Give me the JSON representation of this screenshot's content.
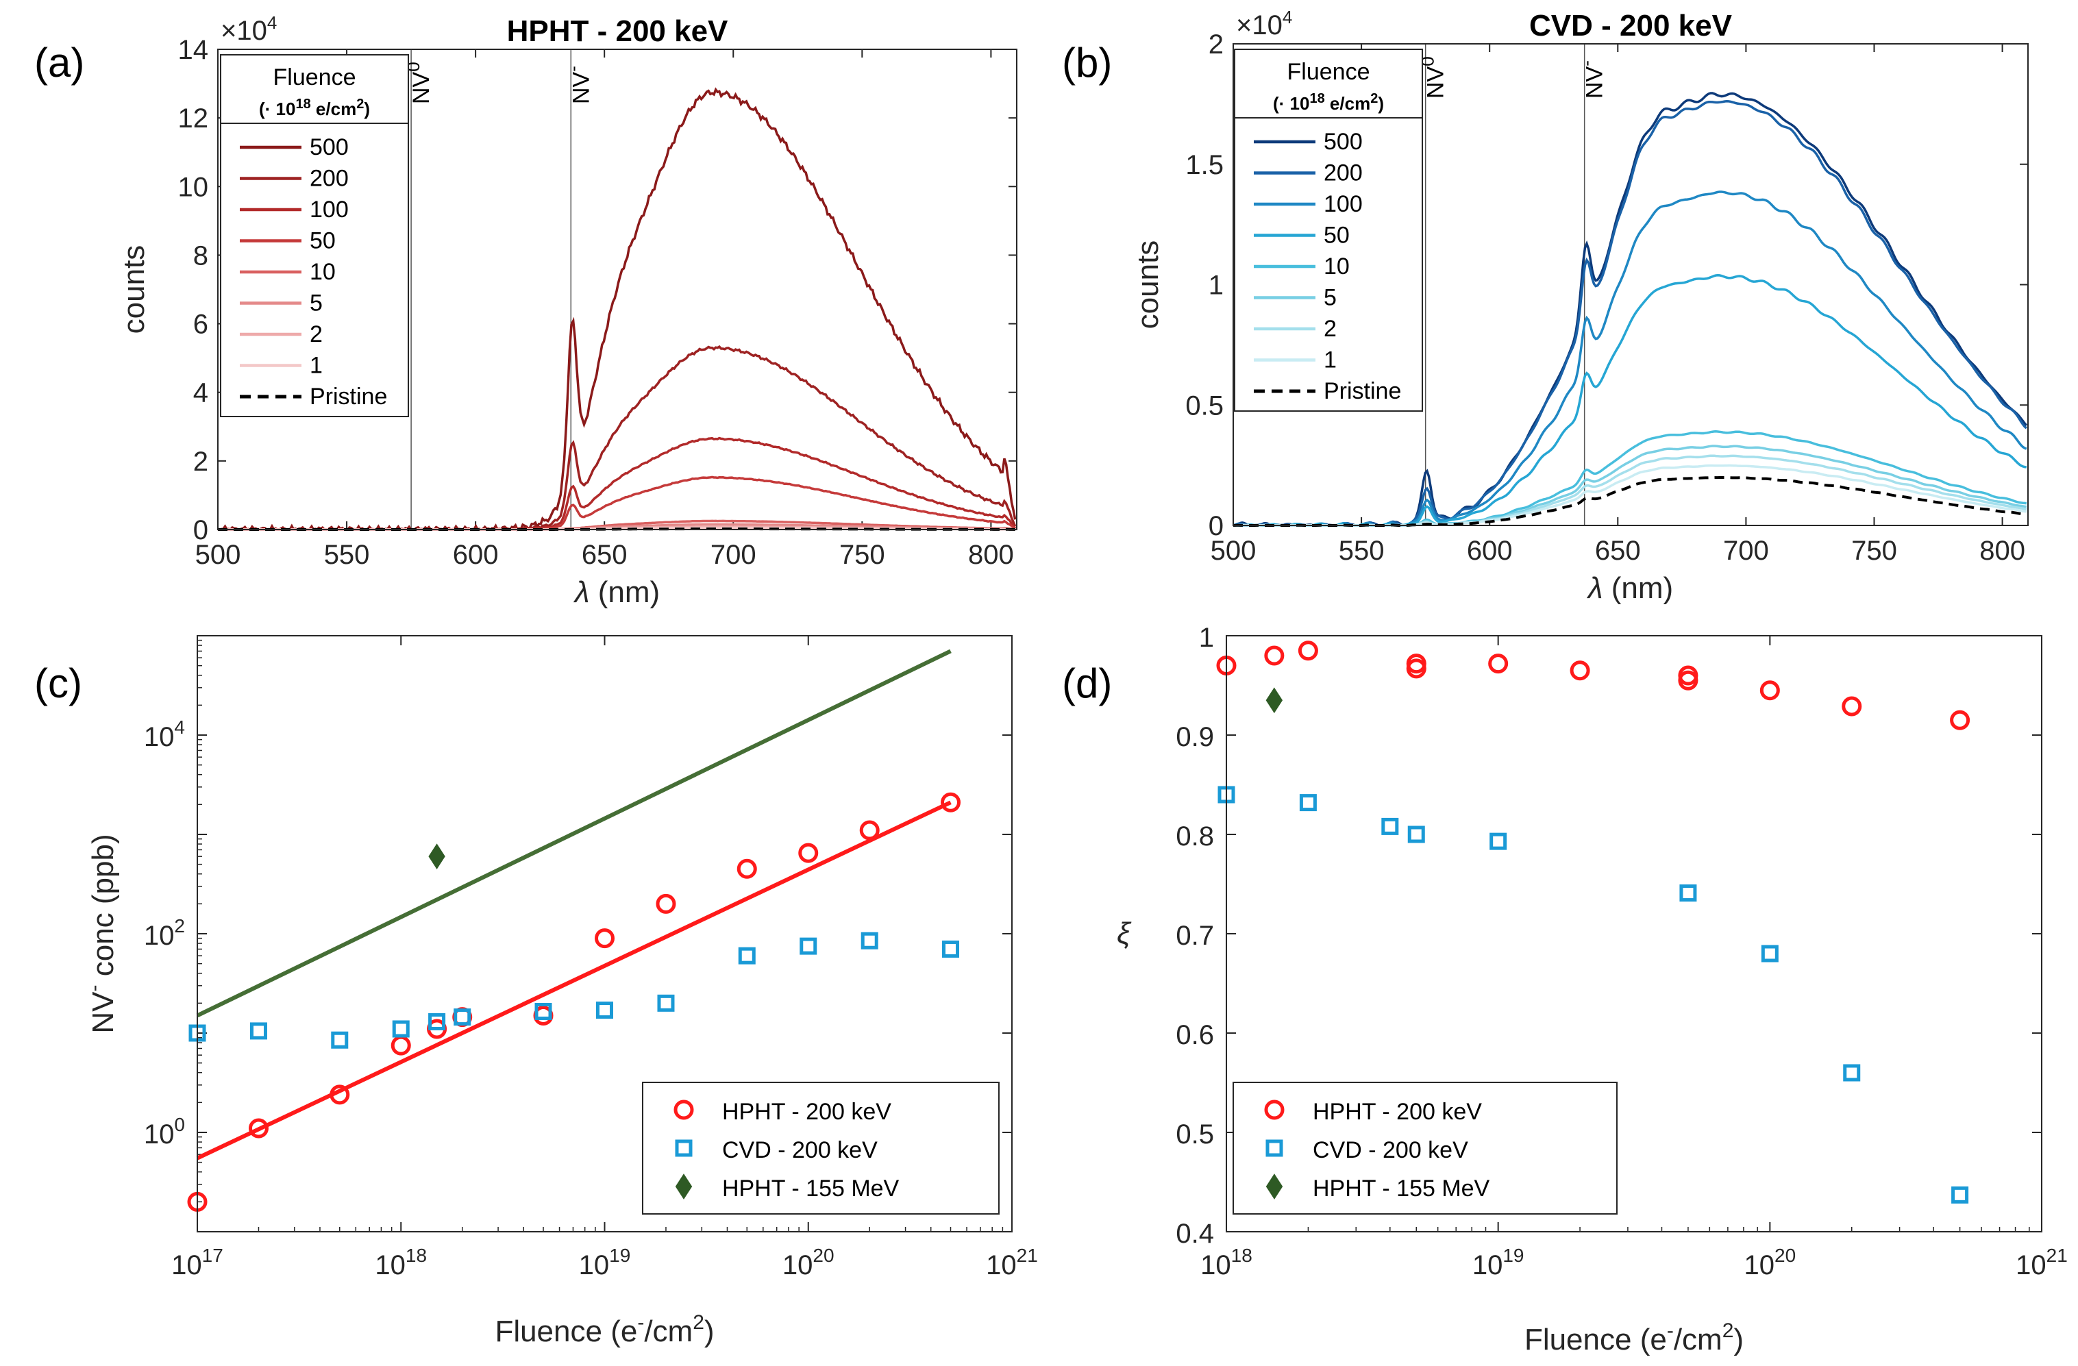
{
  "chart_data": [
    {
      "panel_label": "(a)",
      "type": "line",
      "title": "HPHT - 200 keV",
      "xlabel_symbol": "λ",
      "xlabel_unit": " (nm)",
      "ylabel": "counts",
      "y_multiplier": "×10",
      "y_multiplier_exp": "4",
      "xlim": [
        500,
        810
      ],
      "ylim": [
        0,
        14
      ],
      "xticks": [
        500,
        550,
        600,
        650,
        700,
        750,
        800
      ],
      "yticks": [
        0,
        2,
        4,
        6,
        8,
        10,
        12,
        14
      ],
      "nv_lines": [
        {
          "x": 575,
          "label": "NV",
          "sup": "0"
        },
        {
          "x": 637,
          "label": "NV",
          "sup": "-"
        }
      ],
      "legend_title": "Fluence",
      "legend_subtitle_pre": "(· 10",
      "legend_subtitle_exp": "18",
      "legend_subtitle_mid": " e/cm",
      "legend_subtitle_exp2": "2",
      "legend_subtitle_post": ")",
      "series": [
        {
          "name": "500",
          "color": "#8b1a1a",
          "scale": 12.75,
          "tail": 2.2
        },
        {
          "name": "200",
          "color": "#9e2222",
          "scale": 5.3,
          "tail": 0.9
        },
        {
          "name": "100",
          "color": "#b22a2a",
          "scale": 2.65,
          "tail": 0.45
        },
        {
          "name": "50",
          "color": "#c53a3a",
          "scale": 1.52,
          "tail": 0.26
        },
        {
          "name": "10",
          "color": "#d96060",
          "scale": 0.25,
          "tail": 0.05
        },
        {
          "name": "5",
          "color": "#e48a8a",
          "scale": 0.15,
          "tail": 0.03
        },
        {
          "name": "2",
          "color": "#eeaaaa",
          "scale": 0.08,
          "tail": 0.02
        },
        {
          "name": "1",
          "color": "#f4c8c8",
          "scale": 0.05,
          "tail": 0.01
        },
        {
          "name": "Pristine",
          "color": "#000000",
          "dashed": true,
          "scale": 0.02,
          "tail": 0.005
        }
      ]
    },
    {
      "panel_label": "(b)",
      "type": "line",
      "title": "CVD - 200 keV",
      "xlabel_symbol": "λ",
      "xlabel_unit": " (nm)",
      "ylabel": "counts",
      "y_multiplier": "×10",
      "y_multiplier_exp": "4",
      "xlim": [
        500,
        810
      ],
      "ylim": [
        0,
        2
      ],
      "xticks": [
        500,
        550,
        600,
        650,
        700,
        750,
        800
      ],
      "yticks": [
        0,
        0.5,
        1,
        1.5,
        2
      ],
      "ytick_labels": [
        "0",
        "0.5",
        "1",
        "1.5",
        "2"
      ],
      "nv_lines": [
        {
          "x": 575,
          "label": "NV",
          "sup": "0"
        },
        {
          "x": 637,
          "label": "NV",
          "sup": "-"
        }
      ],
      "legend_title": "Fluence",
      "legend_subtitle_pre": "(· 10",
      "legend_subtitle_exp": "18",
      "legend_subtitle_mid": " e/cm",
      "legend_subtitle_exp2": "2",
      "legend_subtitle_post": ")",
      "series": [
        {
          "name": "500",
          "color": "#0d3a7a",
          "scale": 1.8,
          "zpl0": 0.22,
          "zplm": 0.3
        },
        {
          "name": "200",
          "color": "#1a62a8",
          "scale": 1.77,
          "zpl0": 0.15,
          "zplm": 0.24
        },
        {
          "name": "100",
          "color": "#1f88c4",
          "scale": 1.39,
          "zpl0": 0.1,
          "zplm": 0.18
        },
        {
          "name": "50",
          "color": "#26a6d4",
          "scale": 1.04,
          "zpl0": 0.07,
          "zplm": 0.12
        },
        {
          "name": "10",
          "color": "#48bedd",
          "scale": 0.39,
          "zpl0": 0.02,
          "zplm": 0.04
        },
        {
          "name": "5",
          "color": "#78cfe4",
          "scale": 0.33,
          "zpl0": 0.015,
          "zplm": 0.03
        },
        {
          "name": "2",
          "color": "#a4dfec",
          "scale": 0.29,
          "zpl0": 0.012,
          "zplm": 0.025
        },
        {
          "name": "1",
          "color": "#c9ecf3",
          "scale": 0.25,
          "zpl0": 0.01,
          "zplm": 0.02
        },
        {
          "name": "Pristine",
          "color": "#000000",
          "dashed": true,
          "scale": 0.2,
          "zpl0": 0.005,
          "zplm": 0.015
        }
      ]
    },
    {
      "panel_label": "(c)",
      "type": "scatter",
      "xscale": "log",
      "yscale": "log",
      "xlabel_pre": "Fluence (e",
      "xlabel_sup1": "-",
      "xlabel_mid": "/cm",
      "xlabel_sup2": "2",
      "xlabel_post": ")",
      "ylabel_pre": "NV",
      "ylabel_sup": "-",
      "ylabel_post": " conc (ppb)",
      "xlim_exp": [
        17,
        21
      ],
      "ylim_exp": [
        -1,
        5
      ],
      "xticks": [
        {
          "b": "10",
          "e": "17"
        },
        {
          "b": "10",
          "e": "18"
        },
        {
          "b": "10",
          "e": "19"
        },
        {
          "b": "10",
          "e": "20"
        },
        {
          "b": "10",
          "e": "21"
        }
      ],
      "yticks": [
        {
          "b": "10",
          "e": "0"
        },
        {
          "b": "10",
          "e": "2"
        },
        {
          "b": "10",
          "e": "4"
        }
      ],
      "series": [
        {
          "name": "HPHT - 200 keV",
          "marker": "circle",
          "color": "#ff1a1a",
          "x": [
            1e+17,
            2e+17,
            5e+17,
            1e+18,
            1.5e+18,
            2e+18,
            5e+18,
            1e+19,
            2e+19,
            5e+19,
            1e+20,
            2e+20,
            5e+20
          ],
          "y": [
            0.2,
            1.1,
            2.4,
            7.5,
            11,
            14.5,
            15,
            90,
            200,
            450,
            650,
            1100,
            2100
          ]
        },
        {
          "name": "CVD - 200 keV",
          "marker": "square",
          "color": "#1a9ad6",
          "x": [
            1e+17,
            2e+17,
            5e+17,
            1e+18,
            1.5e+18,
            2e+18,
            5e+18,
            1e+19,
            2e+19,
            5e+19,
            1e+20,
            2e+20,
            5e+20
          ],
          "y": [
            10,
            10.5,
            8.5,
            11,
            13,
            14.5,
            16.5,
            17,
            20,
            60,
            75,
            85,
            70
          ]
        },
        {
          "name": "HPHT - 155 MeV",
          "marker": "diamond",
          "color": "#2e5a24",
          "x": [
            1.5e+18
          ],
          "y": [
            600
          ]
        }
      ],
      "fits": [
        {
          "color": "#ff1a1a",
          "x": [
            1e+17,
            5e+20
          ],
          "y": [
            0.55,
            2100
          ]
        },
        {
          "color": "#456e35",
          "x": [
            1e+17,
            5e+20
          ],
          "y": [
            15,
            70000
          ]
        }
      ]
    },
    {
      "panel_label": "(d)",
      "type": "scatter",
      "xscale": "log",
      "xlabel_pre": "Fluence (e",
      "xlabel_sup1": "-",
      "xlabel_mid": "/cm",
      "xlabel_sup2": "2",
      "xlabel_post": ")",
      "ylabel": "ξ",
      "xlim_exp": [
        18,
        21
      ],
      "ylim": [
        0.4,
        1
      ],
      "xticks": [
        {
          "b": "10",
          "e": "18"
        },
        {
          "b": "10",
          "e": "19"
        },
        {
          "b": "10",
          "e": "20"
        },
        {
          "b": "10",
          "e": "21"
        }
      ],
      "yticks": [
        0.4,
        0.5,
        0.6,
        0.7,
        0.8,
        0.9,
        1
      ],
      "ytick_labels": [
        "0.4",
        "0.5",
        "0.6",
        "0.7",
        "0.8",
        "0.9",
        "1"
      ],
      "series": [
        {
          "name": "HPHT - 200 keV",
          "marker": "circle",
          "color": "#ff1a1a",
          "x": [
            1e+18,
            1.5e+18,
            2e+18,
            5e+18,
            5e+18,
            1e+19,
            2e+19,
            5e+19,
            5e+19,
            1e+20,
            2e+20,
            5e+20
          ],
          "y": [
            0.97,
            0.98,
            0.985,
            0.967,
            0.972,
            0.972,
            0.965,
            0.955,
            0.96,
            0.945,
            0.929,
            0.915
          ]
        },
        {
          "name": "CVD - 200 keV",
          "marker": "square",
          "color": "#1a9ad6",
          "x": [
            1e+18,
            2e+18,
            4e+18,
            5e+18,
            1e+19,
            5e+19,
            1e+20,
            2e+20,
            5e+20
          ],
          "y": [
            0.84,
            0.832,
            0.808,
            0.8,
            0.793,
            0.741,
            0.68,
            0.56,
            0.437
          ]
        },
        {
          "name": "HPHT - 155 MeV",
          "marker": "diamond",
          "color": "#2e5a24",
          "x": [
            1.5e+18
          ],
          "y": [
            0.935
          ]
        }
      ]
    }
  ]
}
